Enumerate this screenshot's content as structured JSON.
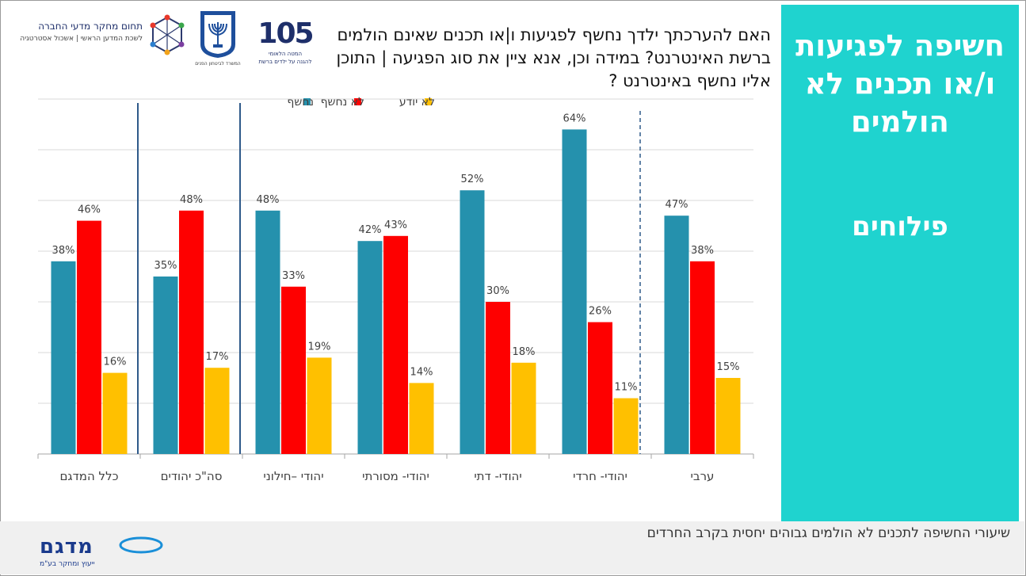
{
  "sidebar": {
    "title": "חשיפה לפגיעות ו/או תכנים לא הולמים",
    "subtitle": "פילוחים"
  },
  "question": "האם להערכתך ילדך נחשף לפגיעות ו|או תכנים שאינם הולמים ברשת האינטרנט? במידה וכן, אנא ציין את סוג הפגיעה | התוכן אליו נחשף באינטרנט ?",
  "logos": {
    "program_number": "105",
    "program_line1": "המטה הלאומי",
    "program_line2": "להגנה על ילדים ברשת",
    "emblem_caption": "המשרד לביטחון הפנים",
    "research_name": "תחום מחקר מדעי החברה",
    "research_sub": "לשכת המדען הראשי | אשכול אסטרטגיה",
    "footer_brand": "מדגם",
    "footer_tagline": "ייעוץ ומחקר בע\"מ"
  },
  "footer": {
    "text": "שיעורי החשיפה לתכנים לא הולמים גבוהים יחסית בקרב החרדים"
  },
  "colors": {
    "exposed": "#2591ad",
    "not_exposed": "#fe0000",
    "dont_know": "#ffc000",
    "sidebar": "#1fd3cf"
  },
  "chart_data": {
    "type": "bar",
    "categories": [
      "כלל המדגם",
      "סה\"כ יהודים",
      "יהודי –חילוני",
      "יהודי- מסורתי",
      "יהודי- דתי",
      "יהודי- חרדי",
      "ערבי"
    ],
    "series": [
      {
        "name": "נחשף",
        "values": [
          38,
          35,
          48,
          42,
          52,
          64,
          47
        ]
      },
      {
        "name": "לא נחשף",
        "values": [
          46,
          48,
          33,
          43,
          30,
          26,
          38
        ]
      },
      {
        "name": "לא יודע",
        "values": [
          16,
          17,
          19,
          14,
          18,
          11,
          15
        ]
      }
    ],
    "value_suffix": "%",
    "ylim": [
      0,
      70
    ],
    "grid": true,
    "legend": "top-center"
  }
}
